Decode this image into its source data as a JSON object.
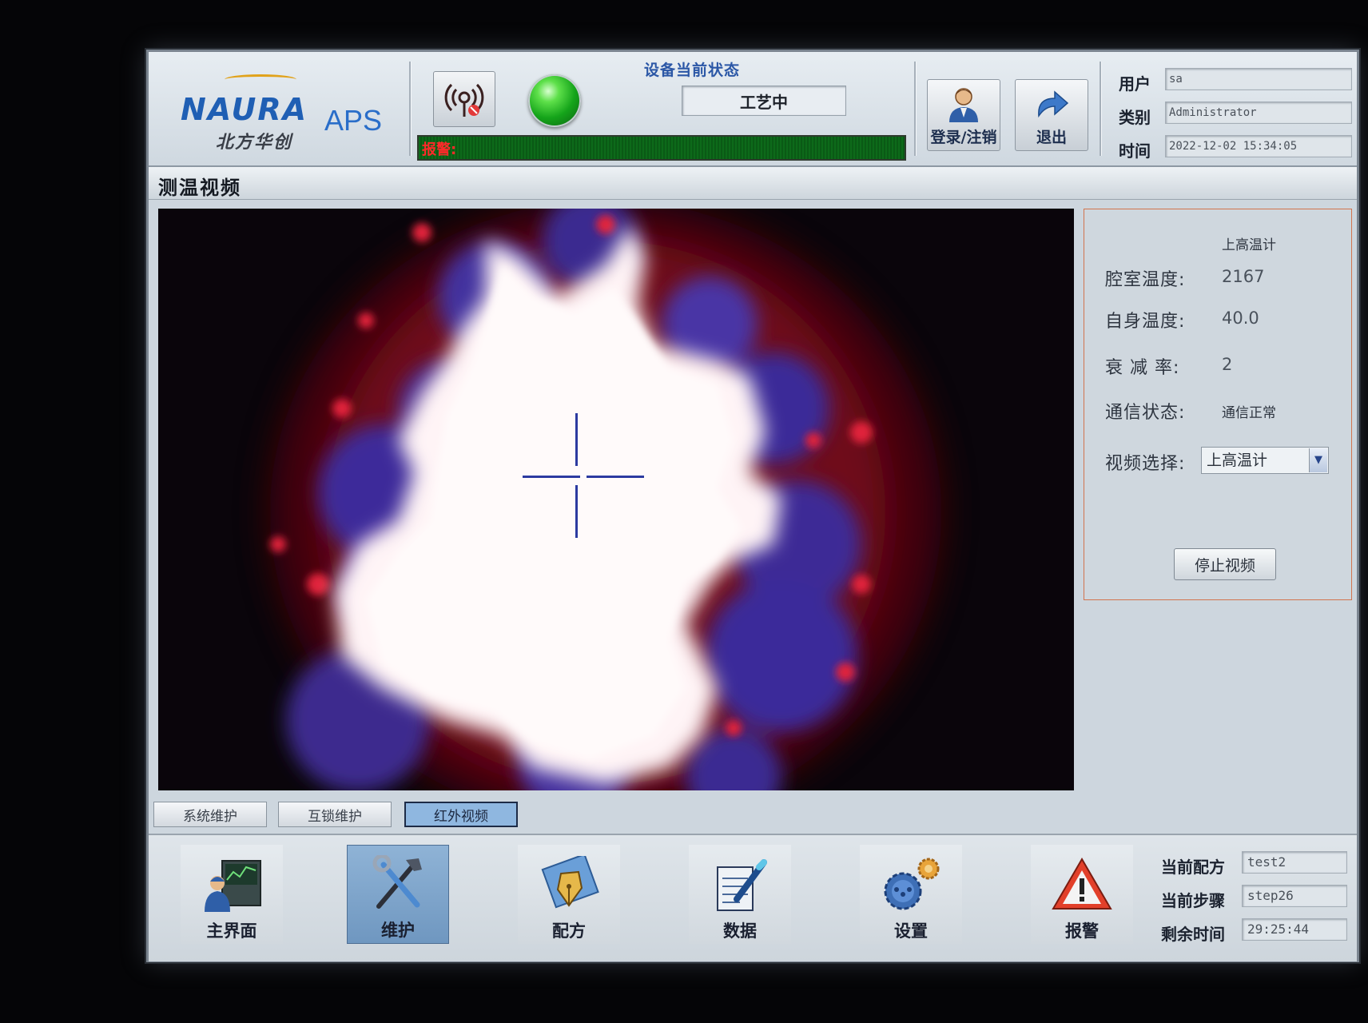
{
  "brand": {
    "logo_en": "NAURA",
    "logo_cn": "北方华创",
    "product": "APS"
  },
  "header": {
    "status_title": "设备当前状态",
    "status_value": "工艺中",
    "alarm_label": "报警:",
    "login_label": "登录/注销",
    "exit_label": "退出",
    "user_label": "用户",
    "user_value": "sa",
    "category_label": "类别",
    "category_value": "Administrator",
    "time_label": "时间",
    "time_value": "2022-12-02 15:34:05"
  },
  "page": {
    "title": "测温视频"
  },
  "panel": {
    "heading": "上高温计",
    "chamber_temp_label": "腔室温度:",
    "chamber_temp_value": "2167",
    "self_temp_label": "自身温度:",
    "self_temp_value": "40.0",
    "attenuation_label": "衰 减 率:",
    "attenuation_value": "2",
    "comm_label": "通信状态:",
    "comm_value": "通信正常",
    "video_select_label": "视频选择:",
    "video_select_value": "上高温计",
    "stop_button": "停止视频"
  },
  "subtabs": [
    {
      "label": "系统维护",
      "active": false
    },
    {
      "label": "互锁维护",
      "active": false
    },
    {
      "label": "红外视频",
      "active": true
    }
  ],
  "nav": [
    {
      "label": "主界面",
      "icon": "monitor-operator-icon",
      "active": false
    },
    {
      "label": "维护",
      "icon": "tools-icon",
      "active": true
    },
    {
      "label": "配方",
      "icon": "pen-nib-icon",
      "active": false
    },
    {
      "label": "数据",
      "icon": "notepad-pen-icon",
      "active": false
    },
    {
      "label": "设置",
      "icon": "gears-icon",
      "active": false
    },
    {
      "label": "报警",
      "icon": "warning-icon",
      "active": false
    }
  ],
  "process": {
    "recipe_label": "当前配方",
    "recipe_value": "test2",
    "step_label": "当前步骤",
    "step_value": "step26",
    "remaining_label": "剩余时间",
    "remaining_value": "29:25:44"
  },
  "colors": {
    "accent_blue": "#1f5fb4",
    "alarm_red": "#ff2a2a",
    "status_green": "#15a41a",
    "panel_border": "#d2744e"
  }
}
